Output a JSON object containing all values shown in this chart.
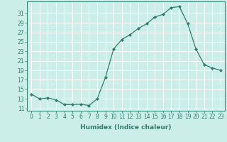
{
  "x": [
    0,
    1,
    2,
    3,
    4,
    5,
    6,
    7,
    8,
    9,
    10,
    11,
    12,
    13,
    14,
    15,
    16,
    17,
    18,
    19,
    20,
    21,
    22,
    23
  ],
  "y": [
    14.0,
    13.0,
    13.2,
    12.8,
    11.8,
    11.8,
    11.9,
    11.6,
    13.0,
    17.5,
    23.5,
    25.5,
    26.5,
    27.8,
    28.8,
    30.2,
    30.8,
    32.2,
    32.4,
    28.8,
    23.5,
    20.2,
    19.5,
    19.0
  ],
  "line_color": "#2e7d6e",
  "marker": "D",
  "marker_size": 2.0,
  "bg_color": "#cceee8",
  "grid_color": "#ffffff",
  "xlabel": "Humidex (Indice chaleur)",
  "xlim": [
    -0.5,
    23.5
  ],
  "ylim": [
    10.5,
    33.5
  ],
  "yticks": [
    11,
    13,
    15,
    17,
    19,
    21,
    23,
    25,
    27,
    29,
    31
  ],
  "xticks": [
    0,
    1,
    2,
    3,
    4,
    5,
    6,
    7,
    8,
    9,
    10,
    11,
    12,
    13,
    14,
    15,
    16,
    17,
    18,
    19,
    20,
    21,
    22,
    23
  ],
  "tick_fontsize": 5.5,
  "xlabel_fontsize": 6.5
}
